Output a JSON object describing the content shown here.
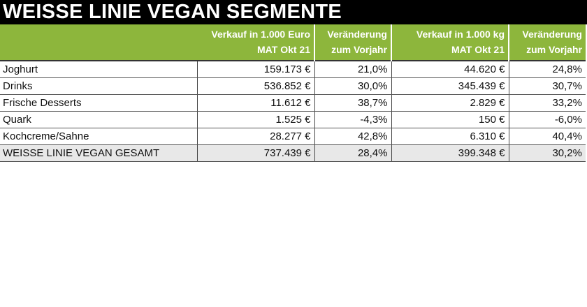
{
  "title": "WEISSE LINIE VEGAN SEGMENTE",
  "colors": {
    "title_bg": "#000000",
    "header_bg": "#8db63c",
    "header_text": "#ffffff",
    "total_row_bg": "#e8e8e8"
  },
  "headers": [
    {
      "line1": "",
      "line2": ""
    },
    {
      "line1": "Verkauf in 1.000 Euro",
      "line2": "MAT Okt 21"
    },
    {
      "line1": "Veränderung",
      "line2": "zum Vorjahr"
    },
    {
      "line1": "Verkauf in 1.000 kg",
      "line2": "MAT Okt 21"
    },
    {
      "line1": "Veränderung",
      "line2": "zum Vorjahr"
    }
  ],
  "rows": [
    {
      "label": "Joghurt",
      "euro": "159.173 €",
      "euro_change": "21,0%",
      "kg": "44.620 €",
      "kg_change": "24,8%"
    },
    {
      "label": "Drinks",
      "euro": "536.852 €",
      "euro_change": "30,0%",
      "kg": "345.439 €",
      "kg_change": "30,7%"
    },
    {
      "label": "Frische Desserts",
      "euro": "11.612 €",
      "euro_change": "38,7%",
      "kg": "2.829 €",
      "kg_change": "33,2%"
    },
    {
      "label": "Quark",
      "euro": "1.525 €",
      "euro_change": "-4,3%",
      "kg": "150 €",
      "kg_change": "-6,0%"
    },
    {
      "label": "Kochcreme/Sahne",
      "euro": "28.277 €",
      "euro_change": "42,8%",
      "kg": "6.310 €",
      "kg_change": "40,4%"
    }
  ],
  "total": {
    "label": "WEISSE LINIE VEGAN GESAMT",
    "euro": "737.439 €",
    "euro_change": "28,4%",
    "kg": "399.348 €",
    "kg_change": "30,2%"
  }
}
